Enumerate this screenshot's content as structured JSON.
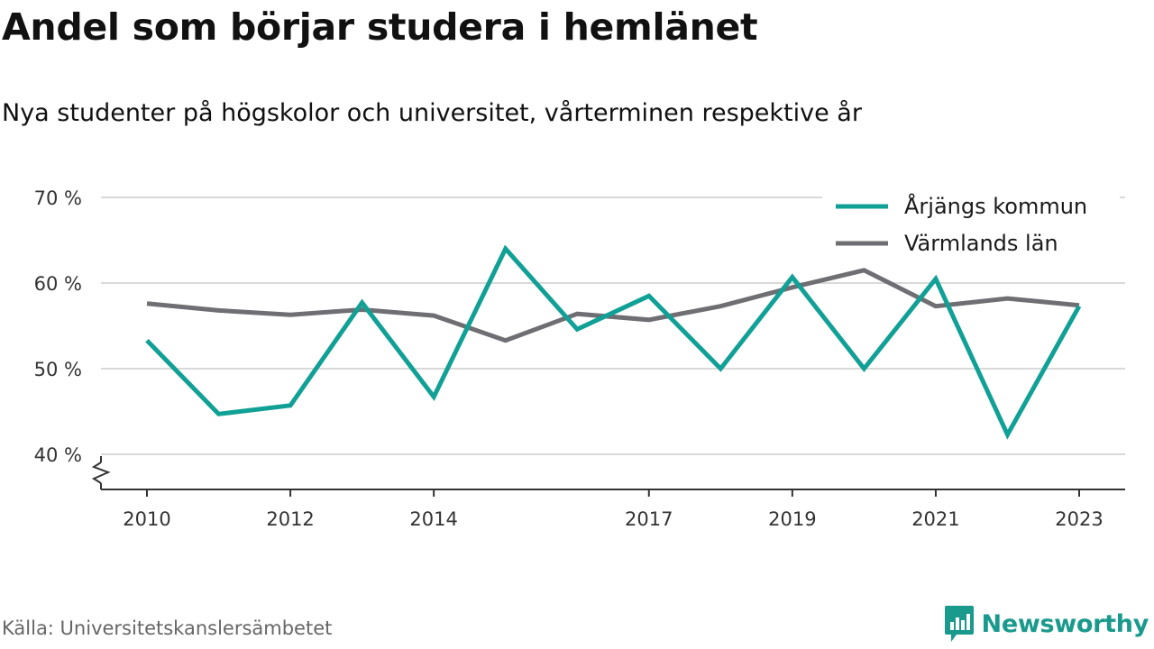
{
  "title": "Andel som börjar studera i hemlänet",
  "subtitle": "Nya studenter på högskolor och universitet, vårterminen respektive år",
  "source": "Källa: Universitetskanslersämbetet",
  "brand": "Newsworthy",
  "colors": {
    "arjang": "#11a096",
    "varmland": "#6e6e73",
    "grid": "#d9d9d9",
    "brand": "#1a9a8c"
  },
  "chart_data": {
    "type": "line",
    "x": [
      2010,
      2011,
      2012,
      2013,
      2014,
      2015,
      2016,
      2017,
      2018,
      2019,
      2020,
      2021,
      2022,
      2023
    ],
    "x_tick_labels": [
      "2010",
      "2012",
      "2014",
      "2017",
      "2019",
      "2021",
      "2023"
    ],
    "y_tick_labels": [
      "40 %",
      "50 %",
      "60 %",
      "70 %"
    ],
    "y_ticks": [
      40,
      50,
      60,
      70
    ],
    "ylim": [
      36,
      70
    ],
    "y_axis_break": true,
    "grid": true,
    "legend_position": "top-right",
    "series": [
      {
        "name": "Årjängs kommun",
        "color": "#11a096",
        "values": [
          53.3,
          44.7,
          45.7,
          57.7,
          46.7,
          64.0,
          54.6,
          58.5,
          50.0,
          60.7,
          50.0,
          60.5,
          42.3,
          57.3
        ]
      },
      {
        "name": "Värmlands län",
        "color": "#6e6e73",
        "values": [
          57.6,
          56.8,
          56.3,
          56.9,
          56.2,
          53.3,
          56.4,
          55.7,
          57.3,
          59.5,
          61.5,
          57.3,
          58.2,
          57.4
        ]
      }
    ]
  }
}
